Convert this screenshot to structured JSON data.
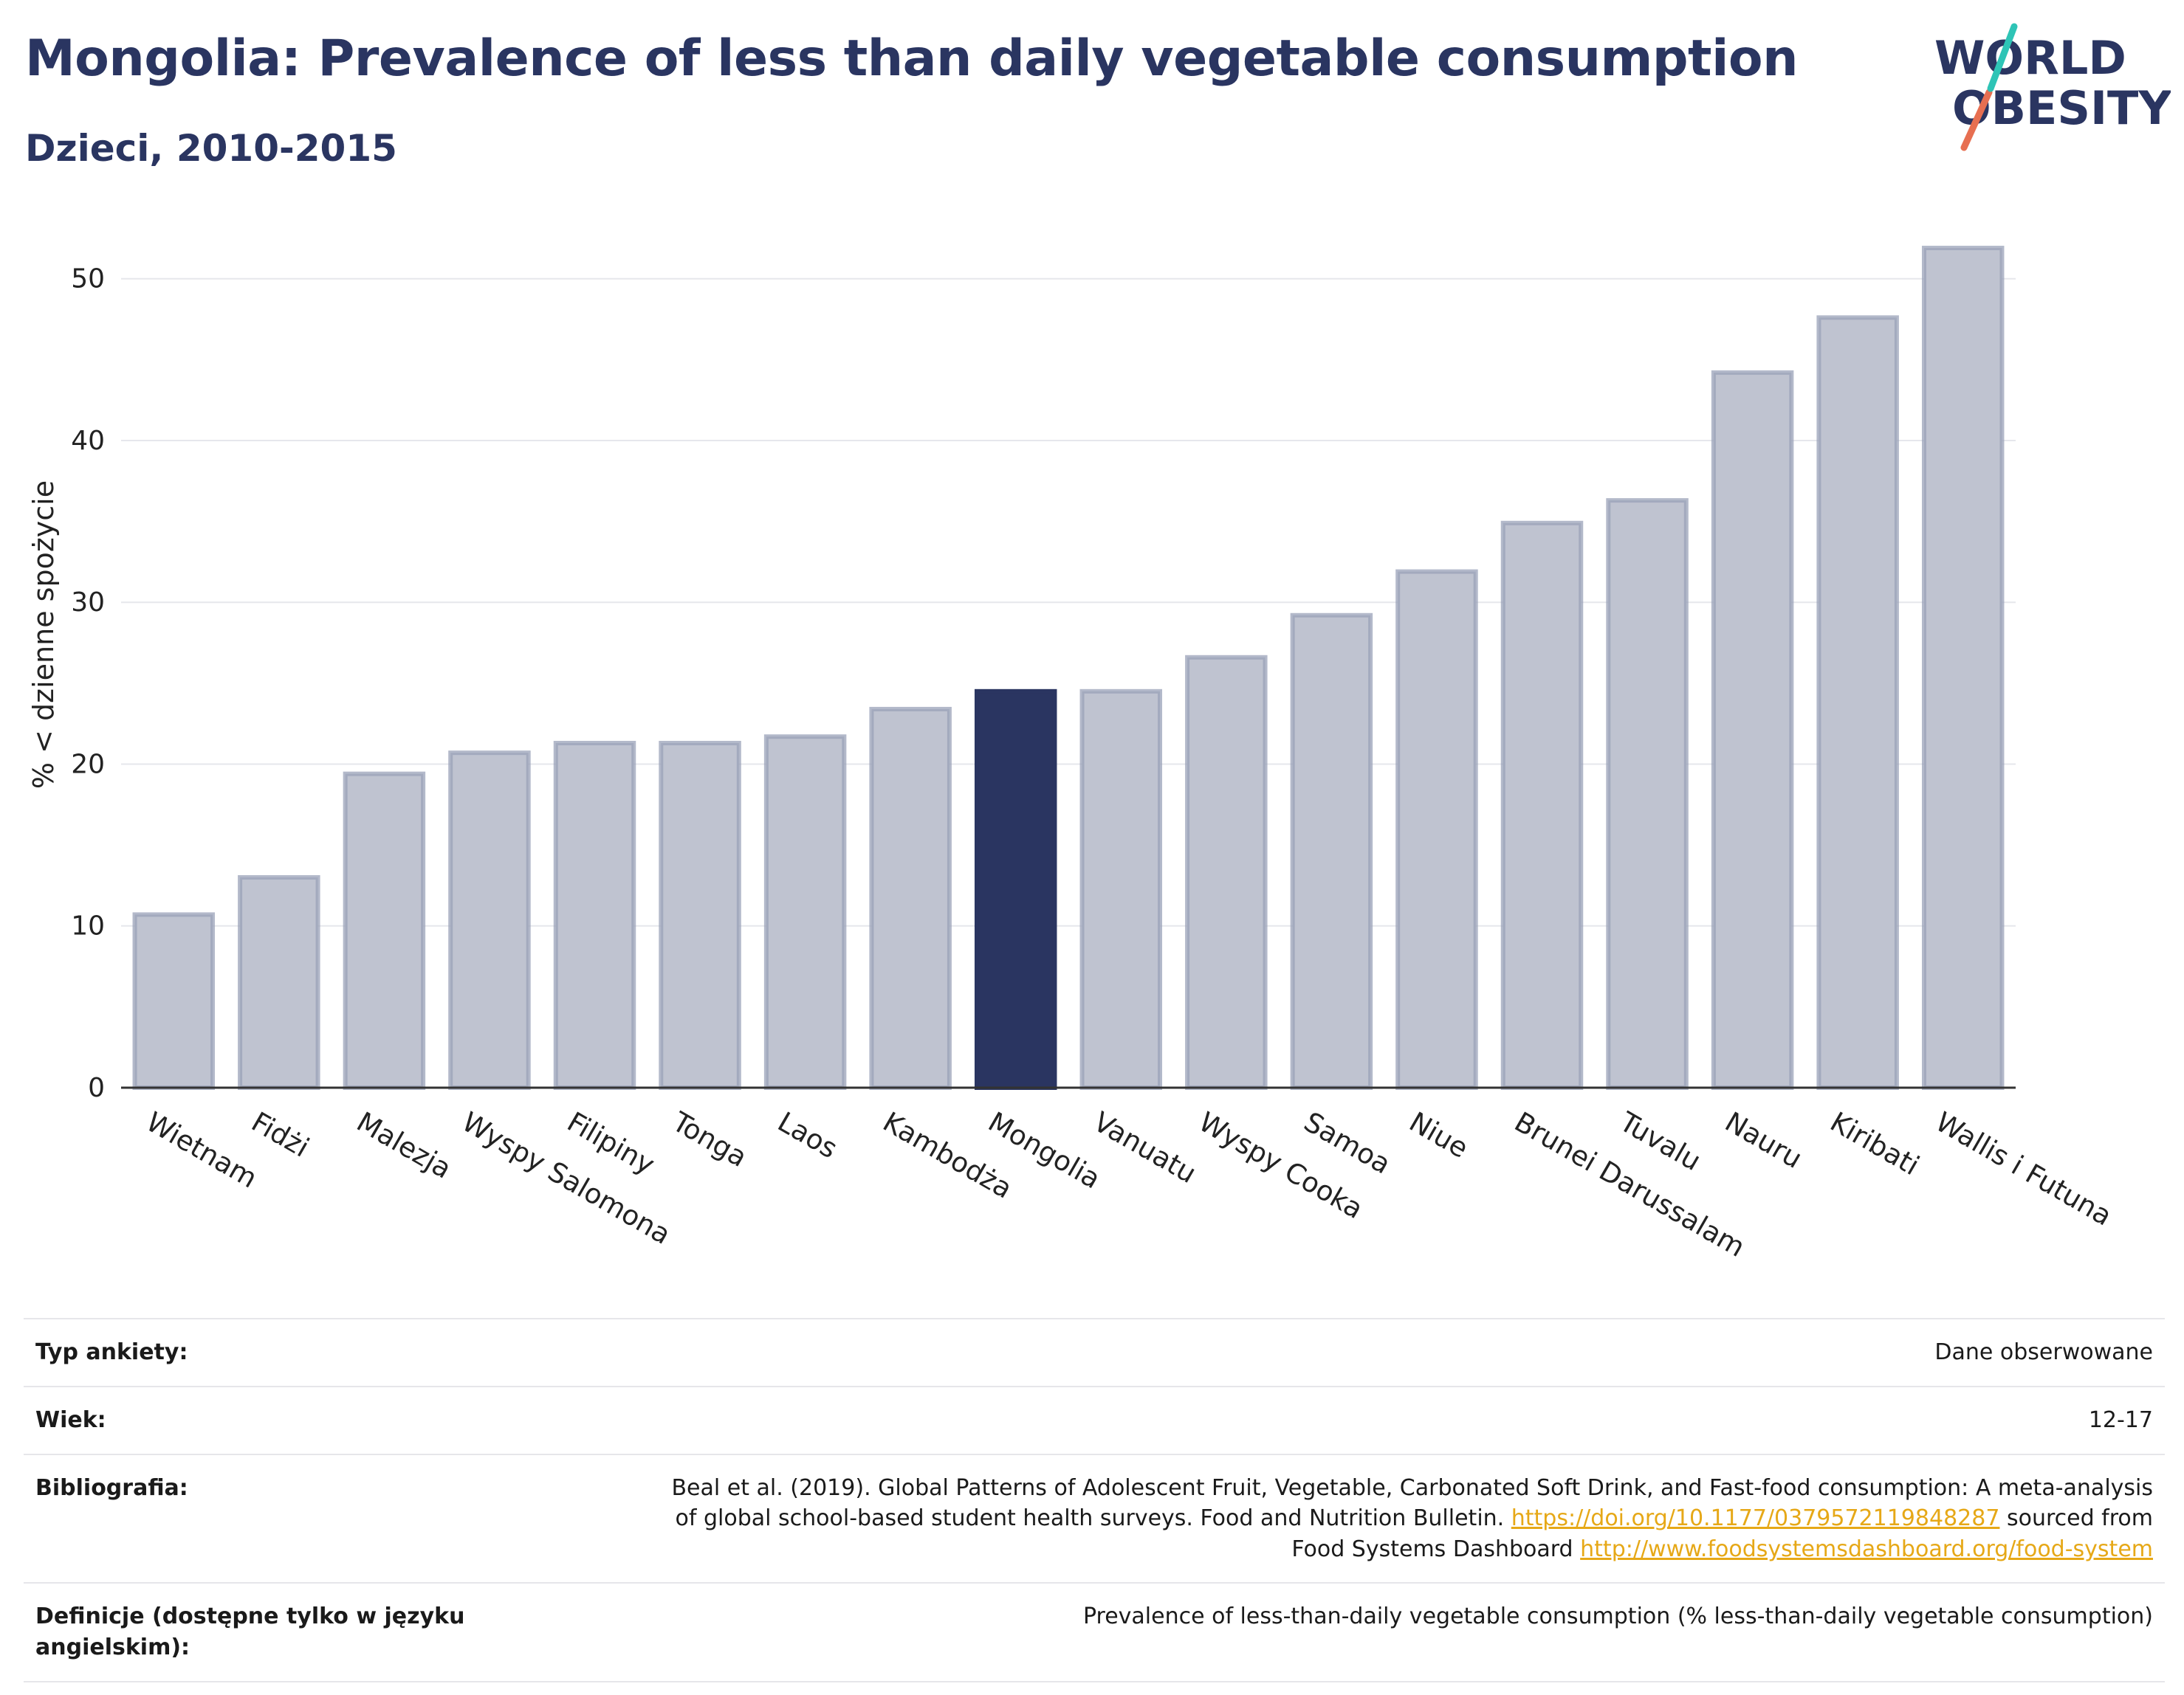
{
  "header": {
    "title": "Mongolia: Prevalence of less than daily vegetable consumption",
    "subtitle": "Dzieci, 2010-2015"
  },
  "logo": {
    "line1": "WORLD",
    "line2": "OBESITY",
    "icon": "world-obesity-logo",
    "accent_teal": "#2ec4b6",
    "accent_red": "#e76f51"
  },
  "colors": {
    "bar": "#bfc3d0",
    "bar_edge": "#9aa1b8",
    "highlight": "#2a3561",
    "grid": "#e6e7ec",
    "axis": "#333333"
  },
  "chart_data": {
    "type": "bar",
    "ylabel": "% < dzienne spożycie",
    "xlabel": "",
    "ylim": [
      0,
      54
    ],
    "yticks": [
      0,
      10,
      20,
      30,
      40,
      50
    ],
    "grid": true,
    "highlight": "Mongolia",
    "categories": [
      "Wietnam",
      "Fidżi",
      "Malezja",
      "Wyspy Salomona",
      "Filipiny",
      "Tonga",
      "Laos",
      "Kambodża",
      "Mongolia",
      "Vanuatu",
      "Wyspy Cooka",
      "Samoa",
      "Niue",
      "Brunei Darussalam",
      "Tuvalu",
      "Nauru",
      "Kiribati",
      "Wallis i Futuna"
    ],
    "values": [
      10.7,
      13.0,
      19.4,
      20.7,
      21.3,
      21.3,
      21.7,
      23.4,
      24.5,
      24.5,
      26.6,
      29.2,
      31.9,
      34.9,
      36.3,
      44.2,
      47.6,
      51.9
    ]
  },
  "info": {
    "rows": [
      {
        "label": "Typ ankiety:",
        "value": "Dane obserwowane"
      },
      {
        "label": "Wiek:",
        "value": "12-17"
      },
      {
        "label": "Bibliografia:",
        "value_line1": "Beal et al. (2019). Global Patterns of Adolescent Fruit, Vegetable, Carbonated Soft Drink, and Fast-food consumption: A meta-analysis",
        "value_line2_pre": "of global school-based student health surveys. Food and Nutrition Bulletin.",
        "link1": "https://doi.org/10.1177/0379572119848287",
        "value_line2_post": "sourced from",
        "value_line3_pre": "Food Systems Dashboard",
        "link2": "http://www.foodsystemsdashboard.org/food-system"
      },
      {
        "label": "Definicje (dostępne tylko w języku angielskim):",
        "value": "Prevalence of less-than-daily vegetable consumption (% less-than-daily vegetable consumption)"
      }
    ]
  }
}
